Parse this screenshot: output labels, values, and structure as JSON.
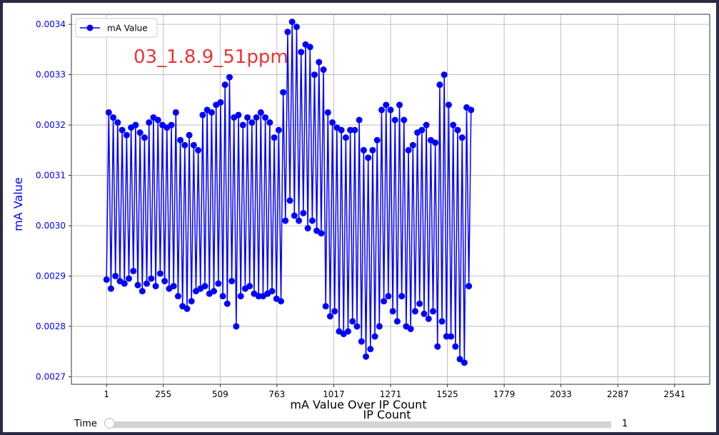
{
  "chart_data": {
    "type": "line",
    "title": "mA Value Over IP Count",
    "xlabel": "IP Count",
    "ylabel": "mA Value",
    "annotation": "03_1.8.9_51ppm",
    "xlim": [
      -156,
      2698
    ],
    "ylim": [
      0.002685,
      0.00342
    ],
    "xticks": [
      1,
      255,
      509,
      763,
      1017,
      1271,
      1525,
      1779,
      2033,
      2287,
      2541
    ],
    "yticks": [
      0.0027,
      0.0028,
      0.0029,
      0.003,
      0.0031,
      0.0032,
      0.0033,
      0.0034
    ],
    "ytick_labels": [
      "0.0027",
      "0.0028",
      "0.0029",
      "0.0030",
      "0.0031",
      "0.0032",
      "0.0033",
      "0.0034"
    ],
    "grid": true,
    "legend": {
      "position": "top-left",
      "entries": [
        "mA Value"
      ]
    },
    "series": [
      {
        "name": "mA Value",
        "color": "#0000ff",
        "marker": "circle",
        "x_start": 1,
        "x_step": 10,
        "values": [
          0.002893,
          0.003225,
          0.002875,
          0.003215,
          0.0029,
          0.003205,
          0.00289,
          0.00319,
          0.002885,
          0.00318,
          0.002895,
          0.003195,
          0.00291,
          0.0032,
          0.002882,
          0.003185,
          0.00287,
          0.003175,
          0.002885,
          0.003205,
          0.002895,
          0.003215,
          0.00288,
          0.00321,
          0.002905,
          0.0032,
          0.00289,
          0.003195,
          0.002875,
          0.0032,
          0.00288,
          0.003225,
          0.00286,
          0.00317,
          0.00284,
          0.00316,
          0.002835,
          0.00318,
          0.00285,
          0.00316,
          0.00287,
          0.00315,
          0.002875,
          0.00322,
          0.00288,
          0.00323,
          0.002865,
          0.003225,
          0.00287,
          0.00324,
          0.002885,
          0.003245,
          0.00286,
          0.00328,
          0.002845,
          0.003295,
          0.00289,
          0.003215,
          0.0028,
          0.00322,
          0.00286,
          0.0032,
          0.002875,
          0.003215,
          0.00288,
          0.003205,
          0.002865,
          0.003215,
          0.00286,
          0.003225,
          0.00286,
          0.003215,
          0.002865,
          0.003205,
          0.00287,
          0.003175,
          0.002855,
          0.00319,
          0.00285,
          0.003265,
          0.00301,
          0.003385,
          0.00305,
          0.003405,
          0.00302,
          0.003395,
          0.00301,
          0.003345,
          0.003025,
          0.00336,
          0.002995,
          0.003355,
          0.00301,
          0.0033,
          0.00299,
          0.003325,
          0.002985,
          0.00331,
          0.00284,
          0.003225,
          0.00282,
          0.003205,
          0.00283,
          0.003195,
          0.00279,
          0.00319,
          0.002785,
          0.003175,
          0.00279,
          0.00319,
          0.00281,
          0.00319,
          0.0028,
          0.00321,
          0.00277,
          0.00315,
          0.00274,
          0.003135,
          0.002755,
          0.00315,
          0.00278,
          0.00317,
          0.0028,
          0.00323,
          0.00285,
          0.00324,
          0.00286,
          0.00323,
          0.00283,
          0.00321,
          0.00281,
          0.00324,
          0.00286,
          0.00321,
          0.0028,
          0.00315,
          0.002795,
          0.00316,
          0.00283,
          0.003185,
          0.002845,
          0.00319,
          0.002825,
          0.0032,
          0.002815,
          0.00317,
          0.00283,
          0.003165,
          0.00276,
          0.00328,
          0.00281,
          0.0033,
          0.00278,
          0.00324,
          0.00278,
          0.0032,
          0.00276,
          0.00319,
          0.002735,
          0.003175,
          0.002728,
          0.003235,
          0.00288,
          0.00323
        ]
      }
    ]
  }
}
